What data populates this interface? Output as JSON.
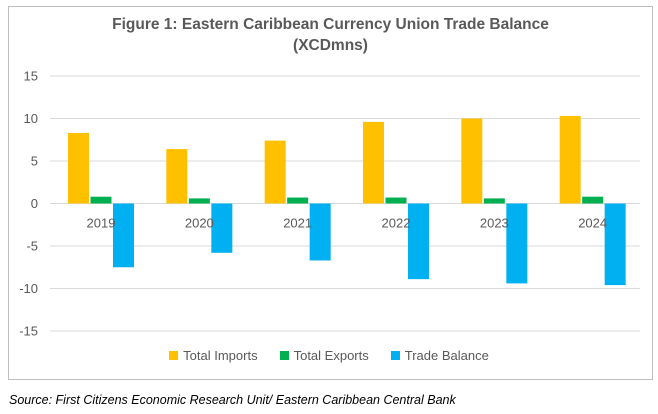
{
  "chart_data": {
    "type": "bar",
    "title": "Figure 1: Eastern Caribbean Currency Union Trade Balance",
    "subtitle": "(XCDmns)",
    "categories": [
      "2019",
      "2020",
      "2021",
      "2022",
      "2023",
      "2024"
    ],
    "series": [
      {
        "name": "Total Imports",
        "color": "#ffc000",
        "values": [
          8.3,
          6.4,
          7.4,
          9.6,
          10.0,
          10.3
        ]
      },
      {
        "name": "Total Exports",
        "color": "#00b050",
        "values": [
          0.8,
          0.6,
          0.7,
          0.7,
          0.6,
          0.8
        ]
      },
      {
        "name": "Trade Balance",
        "color": "#00b0f0",
        "values": [
          -7.5,
          -5.8,
          -6.7,
          -8.9,
          -9.4,
          -9.6
        ]
      }
    ],
    "yticks": [
      "15",
      "10",
      "5",
      "0",
      "-5",
      "-10",
      "-15"
    ],
    "ylim": [
      -15,
      15
    ],
    "grid": true,
    "legend_position": "bottom"
  },
  "source": "Source: First Citizens Economic Research Unit/ Eastern Caribbean Central Bank"
}
